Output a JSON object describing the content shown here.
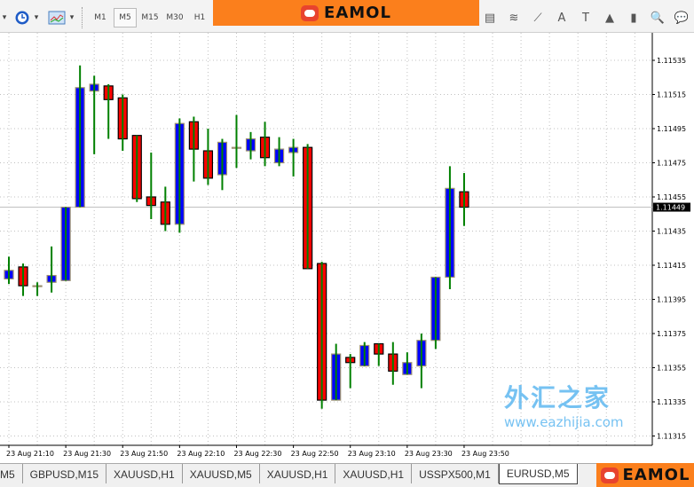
{
  "toolbar": {
    "timeframes": [
      "M1",
      "M5",
      "M15",
      "M30",
      "H1"
    ],
    "active_timeframe": "M5",
    "left_icons": [
      "dropdown-arrow-icon",
      "clock-icon",
      "chart-template-icon"
    ],
    "right_icons": [
      "grid-lines-icon",
      "fibonacci-icon",
      "pitchfork-icon",
      "text-icon",
      "text-label-icon",
      "arrow-up-icon",
      "rectangle-icon",
      "zoom-icon",
      "comment-icon"
    ],
    "right_icon_glyphs": [
      "▤",
      "≋",
      "⟋",
      "A",
      "T",
      "▲",
      "▮",
      "🔍",
      "💬"
    ]
  },
  "banner": {
    "logo_text": "EAMOL"
  },
  "colors": {
    "bull_body": "#0000ff",
    "bear_body": "#ff0000",
    "wick": "#008000",
    "outline": "#000000",
    "grid": "#c0c0c0",
    "price_line": "#c0c0c0",
    "banner": "#fb7f1c"
  },
  "chart_data": {
    "type": "candlestick",
    "symbol": "EURUSD",
    "timeframe": "M5",
    "ylim": [
      1.11305,
      1.11545
    ],
    "y_ticks": [
      "1.11535",
      "1.11515",
      "1.11495",
      "1.11475",
      "1.11455",
      "1.11435",
      "1.11415",
      "1.11395",
      "1.11375",
      "1.11355",
      "1.11335",
      "1.11315"
    ],
    "x_ticks": [
      "23 Aug 21:10",
      "23 Aug 21:30",
      "23 Aug 21:50",
      "23 Aug 22:10",
      "23 Aug 22:30",
      "23 Aug 22:50",
      "23 Aug 23:10",
      "23 Aug 23:30",
      "23 Aug 23:50"
    ],
    "current_price": "1.11449",
    "grid": true,
    "candles": [
      {
        "t": "21:10",
        "o": 1.11407,
        "h": 1.1142,
        "l": 1.11404,
        "c": 1.11412
      },
      {
        "t": "21:15",
        "o": 1.11414,
        "h": 1.11416,
        "l": 1.11397,
        "c": 1.11403
      },
      {
        "t": "21:20",
        "o": 1.11403,
        "h": 1.11405,
        "l": 1.11397,
        "c": 1.11403
      },
      {
        "t": "21:25",
        "o": 1.11405,
        "h": 1.11426,
        "l": 1.11399,
        "c": 1.11409
      },
      {
        "t": "21:30",
        "o": 1.11406,
        "h": 1.11449,
        "l": 1.11406,
        "c": 1.11449
      },
      {
        "t": "21:35",
        "o": 1.11449,
        "h": 1.11532,
        "l": 1.11449,
        "c": 1.11519
      },
      {
        "t": "21:40",
        "o": 1.11517,
        "h": 1.11526,
        "l": 1.1148,
        "c": 1.11521
      },
      {
        "t": "21:45",
        "o": 1.1152,
        "h": 1.11521,
        "l": 1.11489,
        "c": 1.11512
      },
      {
        "t": "21:50",
        "o": 1.11513,
        "h": 1.11515,
        "l": 1.11482,
        "c": 1.11489
      },
      {
        "t": "21:55",
        "o": 1.11491,
        "h": 1.11491,
        "l": 1.11452,
        "c": 1.11454
      },
      {
        "t": "22:00",
        "o": 1.11455,
        "h": 1.11481,
        "l": 1.11442,
        "c": 1.1145
      },
      {
        "t": "22:05",
        "o": 1.11452,
        "h": 1.11461,
        "l": 1.11435,
        "c": 1.11439
      },
      {
        "t": "22:10",
        "o": 1.11439,
        "h": 1.11501,
        "l": 1.11434,
        "c": 1.11498
      },
      {
        "t": "22:15",
        "o": 1.11499,
        "h": 1.11502,
        "l": 1.11464,
        "c": 1.11483
      },
      {
        "t": "22:20",
        "o": 1.11482,
        "h": 1.11495,
        "l": 1.11462,
        "c": 1.11466
      },
      {
        "t": "22:25",
        "o": 1.11468,
        "h": 1.11489,
        "l": 1.11459,
        "c": 1.11487
      },
      {
        "t": "22:30",
        "o": 1.11484,
        "h": 1.11503,
        "l": 1.11472,
        "c": 1.11484
      },
      {
        "t": "22:35",
        "o": 1.11482,
        "h": 1.11493,
        "l": 1.11477,
        "c": 1.11489
      },
      {
        "t": "22:40",
        "o": 1.1149,
        "h": 1.11499,
        "l": 1.11473,
        "c": 1.11478
      },
      {
        "t": "22:45",
        "o": 1.11475,
        "h": 1.1149,
        "l": 1.11473,
        "c": 1.11483
      },
      {
        "t": "22:50",
        "o": 1.11481,
        "h": 1.11489,
        "l": 1.11467,
        "c": 1.11484
      },
      {
        "t": "22:55",
        "o": 1.11484,
        "h": 1.11486,
        "l": 1.11413,
        "c": 1.11413
      },
      {
        "t": "23:00",
        "o": 1.11416,
        "h": 1.11417,
        "l": 1.11331,
        "c": 1.11336
      },
      {
        "t": "23:05",
        "o": 1.11336,
        "h": 1.11369,
        "l": 1.11336,
        "c": 1.11363
      },
      {
        "t": "23:10",
        "o": 1.11361,
        "h": 1.11363,
        "l": 1.11343,
        "c": 1.11358
      },
      {
        "t": "23:15",
        "o": 1.11356,
        "h": 1.1137,
        "l": 1.11356,
        "c": 1.11368
      },
      {
        "t": "23:20",
        "o": 1.11369,
        "h": 1.11369,
        "l": 1.11356,
        "c": 1.11363
      },
      {
        "t": "23:25",
        "o": 1.11363,
        "h": 1.1137,
        "l": 1.11345,
        "c": 1.11353
      },
      {
        "t": "23:30",
        "o": 1.11351,
        "h": 1.11364,
        "l": 1.11351,
        "c": 1.11358
      },
      {
        "t": "23:35",
        "o": 1.11356,
        "h": 1.11375,
        "l": 1.11343,
        "c": 1.11371
      },
      {
        "t": "23:40",
        "o": 1.11371,
        "h": 1.11408,
        "l": 1.11366,
        "c": 1.11408
      },
      {
        "t": "23:45",
        "o": 1.11408,
        "h": 1.11473,
        "l": 1.11401,
        "c": 1.1146
      },
      {
        "t": "23:50",
        "o": 1.11458,
        "h": 1.11469,
        "l": 1.11438,
        "c": 1.11449
      }
    ]
  },
  "tabs": [
    {
      "label": "M5",
      "active": false
    },
    {
      "label": "GBPUSD,M15",
      "active": false
    },
    {
      "label": "XAUUSD,H1",
      "active": false
    },
    {
      "label": "XAUUSD,M5",
      "active": false
    },
    {
      "label": "XAUUSD,H1",
      "active": false
    },
    {
      "label": "XAUUSD,H1",
      "active": false
    },
    {
      "label": "USSPX500,M1",
      "active": false
    },
    {
      "label": "EURUSD,M5",
      "active": true
    }
  ],
  "watermark": {
    "cn": "外汇之家",
    "url": "www.eazhijia.com"
  },
  "footer_logo": {
    "logo_text": "EAMOL"
  }
}
